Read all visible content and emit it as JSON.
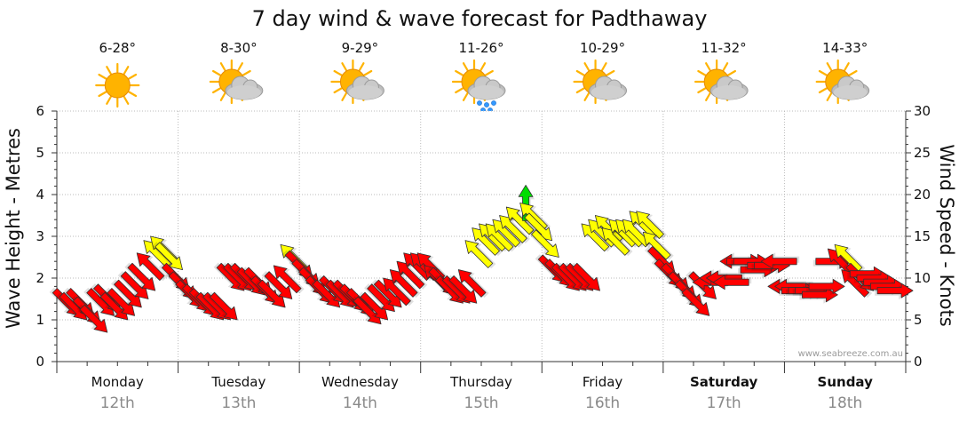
{
  "chart_data": {
    "type": "line",
    "title": "7 day wind & wave forecast for Padthaway",
    "ylabel_left": "Wave Height - Metres",
    "ylabel_right": "Wind Speed - Knots",
    "ylim_left": [
      0,
      6
    ],
    "ylim_right": [
      0,
      30
    ],
    "yticks_left": [
      "0",
      "1",
      "2",
      "3",
      "4",
      "5",
      "6"
    ],
    "yticks_right": [
      "0",
      "5",
      "10",
      "15",
      "20",
      "25",
      "30"
    ],
    "grid": true,
    "watermark": "www.seabreeze.com.au",
    "colors": {
      "low": "#ff0000",
      "mid": "#ffff00",
      "high": "#00dd00",
      "sun": "#ffb300",
      "cloud": "#bdbdbd",
      "rain": "#3399ff"
    },
    "days": [
      {
        "name": "Monday",
        "date": "12th",
        "temp": "6-28°",
        "icon": "sun-icon",
        "bold": false
      },
      {
        "name": "Tuesday",
        "date": "13th",
        "temp": "8-30°",
        "icon": "partly-cloudy-icon",
        "bold": false
      },
      {
        "name": "Wednesday",
        "date": "14th",
        "temp": "9-29°",
        "icon": "partly-cloudy-icon",
        "bold": false
      },
      {
        "name": "Thursday",
        "date": "15th",
        "temp": "11-26°",
        "icon": "rain-showers-icon",
        "bold": false
      },
      {
        "name": "Friday",
        "date": "16th",
        "temp": "10-29°",
        "icon": "partly-cloudy-icon",
        "bold": false
      },
      {
        "name": "Saturday",
        "date": "17th",
        "temp": "11-32°",
        "icon": "partly-cloudy-icon",
        "bold": true
      },
      {
        "name": "Sunday",
        "date": "18th",
        "temp": "14-33°",
        "icon": "partly-cloudy-icon",
        "bold": true
      }
    ],
    "wind_knots": [
      7,
      6.5,
      7,
      6,
      5,
      7,
      7.5,
      6.5,
      7,
      8,
      9,
      10,
      11.5,
      13,
      13.5,
      12.5,
      10,
      9,
      8,
      7.5,
      7,
      6.5,
      6.5,
      6.5,
      10,
      10,
      10,
      9.5,
      9.5,
      8.5,
      8,
      9,
      10,
      12.5,
      11.5,
      10.5,
      9.5,
      8.5,
      8,
      8.5,
      8,
      8,
      7.5,
      7,
      6,
      6.5,
      7.5,
      8,
      8.5,
      9.5,
      10.5,
      11.5,
      11.5,
      11.5,
      10,
      9.5,
      8.5,
      8.5,
      8.5,
      9.5,
      13,
      14.5,
      15,
      15,
      15.5,
      16,
      17,
      19,
      17.5,
      16,
      14,
      11,
      10.5,
      10,
      10,
      10,
      10,
      15,
      15.5,
      16,
      14.5,
      15.5,
      15.5,
      15.5,
      16.5,
      16.5,
      14,
      12,
      10.5,
      10,
      9,
      8,
      7,
      9,
      9.5,
      10,
      10,
      9.5,
      12,
      12,
      12,
      11,
      11.5,
      11.5,
      12,
      9,
      9,
      8.5,
      8.5,
      8.5,
      8,
      9,
      12,
      12,
      12.5,
      9.5,
      10,
      10.5,
      10,
      9.5,
      9,
      8.5
    ],
    "wind_dir_deg": [
      135,
      135,
      135,
      135,
      135,
      135,
      135,
      135,
      135,
      135,
      135,
      135,
      315,
      315,
      315,
      135,
      135,
      135,
      135,
      135,
      135,
      135,
      135,
      135,
      135,
      135,
      135,
      135,
      135,
      135,
      135,
      135,
      315,
      315,
      135,
      135,
      135,
      135,
      135,
      135,
      135,
      135,
      135,
      135,
      135,
      135,
      135,
      135,
      315,
      315,
      315,
      315,
      315,
      315,
      315,
      135,
      135,
      135,
      135,
      315,
      315,
      315,
      315,
      315,
      315,
      315,
      315,
      0,
      315,
      135,
      135,
      135,
      135,
      135,
      135,
      135,
      135,
      315,
      315,
      315,
      315,
      315,
      315,
      315,
      315,
      315,
      315,
      135,
      135,
      135,
      135,
      135,
      135,
      135,
      270,
      270,
      270,
      270,
      270,
      90,
      90,
      90,
      90,
      90,
      270,
      270,
      270,
      90,
      90,
      90,
      90,
      90,
      90,
      315,
      315,
      315,
      135,
      90,
      90,
      90,
      90,
      90
    ]
  }
}
